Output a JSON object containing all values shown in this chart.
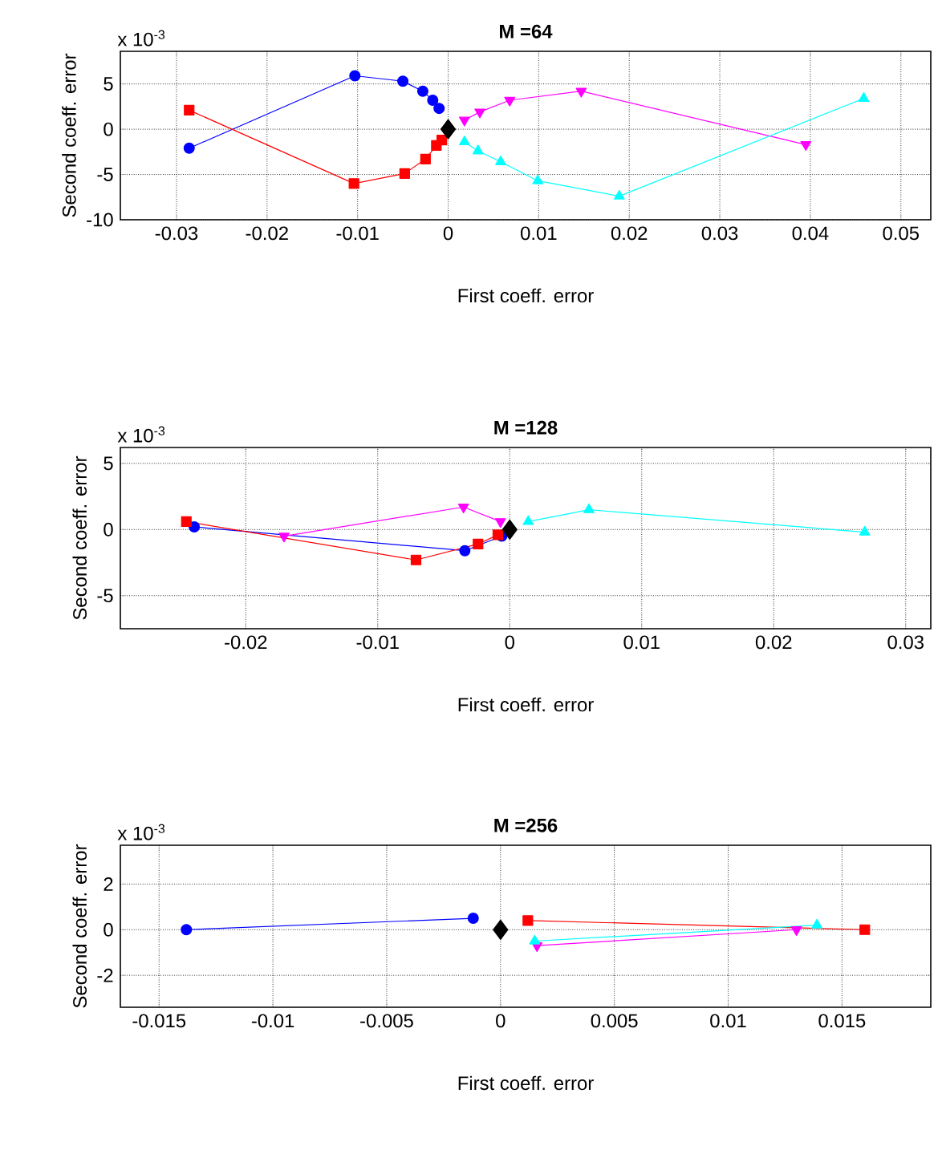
{
  "chart_data": [
    {
      "type": "line",
      "title": "M =64",
      "xlabel": "First coeff. error",
      "ylabel": "Second coeff. error",
      "annotations": [
        "x 10$^{-3}$"
      ],
      "grid": true,
      "xlim": [
        -0.0362,
        0.0533
      ],
      "ylim": [
        -10,
        8.6
      ],
      "xticks": [
        -0.03,
        -0.02,
        -0.01,
        0,
        0.01,
        0.02,
        0.03,
        0.04,
        0.05
      ],
      "yticks": [
        -10,
        -5,
        0,
        5
      ],
      "series": [
        {
          "color": "#0000ff",
          "marker": "circle",
          "x": [
            -0.0286,
            -0.0103,
            -0.005,
            -0.0028,
            -0.0017,
            -0.001
          ],
          "values": [
            -2.1,
            5.9,
            5.3,
            4.2,
            3.2,
            2.3
          ]
        },
        {
          "color": "#ff0000",
          "marker": "square",
          "x": [
            -0.0286,
            -0.0104,
            -0.0048,
            -0.0025,
            -0.0013,
            -0.0007
          ],
          "values": [
            2.1,
            -6.0,
            -4.9,
            -3.3,
            -1.8,
            -1.2
          ]
        },
        {
          "color": "#ff00ff",
          "marker": "triangle-down",
          "x": [
            0.0018,
            0.0035,
            0.0068,
            0.0147,
            0.0395
          ],
          "values": [
            1.0,
            1.9,
            3.2,
            4.2,
            -1.7
          ]
        },
        {
          "color": "#00ffff",
          "marker": "triangle",
          "x": [
            0.0018,
            0.0033,
            0.0058,
            0.0099,
            0.0189,
            0.0459
          ],
          "values": [
            -1.4,
            -2.4,
            -3.6,
            -5.7,
            -7.4,
            3.4
          ]
        },
        {
          "type": "scatter",
          "color": "#000000",
          "marker": "diamond",
          "x": [
            0
          ],
          "values": [
            0
          ]
        }
      ]
    },
    {
      "type": "line",
      "title": "M =128",
      "xlabel": "First coeff. error",
      "ylabel": "Second coeff. error",
      "annotations": [
        "x 10$^{-3}$"
      ],
      "grid": true,
      "xlim": [
        -0.0295,
        0.0319
      ],
      "ylim": [
        -7.5,
        6.2
      ],
      "xticks": [
        -0.02,
        -0.01,
        0,
        0.01,
        0.02,
        0.03
      ],
      "yticks": [
        -5,
        0,
        5
      ],
      "series": [
        {
          "color": "#0000ff",
          "marker": "circle",
          "x": [
            -0.0239,
            -0.0034,
            -0.0006
          ],
          "values": [
            0.2,
            -1.6,
            -0.5
          ]
        },
        {
          "color": "#ff0000",
          "marker": "square",
          "x": [
            -0.0245,
            -0.0071,
            -0.0024,
            -0.0009
          ],
          "values": [
            0.6,
            -2.3,
            -1.1,
            -0.4
          ]
        },
        {
          "color": "#ff00ff",
          "marker": "triangle-down",
          "x": [
            -0.0171,
            -0.0035,
            -0.0007
          ],
          "values": [
            -0.5,
            1.7,
            0.6
          ]
        },
        {
          "color": "#00ffff",
          "marker": "triangle",
          "x": [
            0.0014,
            0.006,
            0.0269
          ],
          "values": [
            0.6,
            1.5,
            -0.2
          ]
        },
        {
          "type": "scatter",
          "color": "#000000",
          "marker": "diamond",
          "x": [
            0
          ],
          "values": [
            0
          ]
        }
      ]
    },
    {
      "type": "line",
      "title": "M =256",
      "xlabel": "First coeff. error",
      "ylabel": "Second coeff. error",
      "annotations": [
        "x 10$^{-3}$"
      ],
      "grid": true,
      "xlim": [
        -0.0167,
        0.0189
      ],
      "ylim": [
        -3.4,
        3.7
      ],
      "xticks": [
        -0.015,
        -0.01,
        -0.005,
        0,
        0.005,
        0.01,
        0.015
      ],
      "yticks": [
        -2,
        0,
        2
      ],
      "series": [
        {
          "color": "#0000ff",
          "marker": "circle",
          "x": [
            -0.0138,
            -0.0012
          ],
          "values": [
            0,
            0.5
          ]
        },
        {
          "color": "#ff0000",
          "marker": "square",
          "x": [
            0.0012,
            0.016
          ],
          "values": [
            0.4,
            0
          ]
        },
        {
          "color": "#ff00ff",
          "marker": "triangle-down",
          "x": [
            0.0016,
            0.013
          ],
          "values": [
            -0.7,
            0
          ]
        },
        {
          "color": "#00ffff",
          "marker": "triangle",
          "x": [
            0.0015,
            0.0139
          ],
          "values": [
            -0.5,
            0.2
          ]
        },
        {
          "type": "scatter",
          "color": "#000000",
          "marker": "diamond",
          "x": [
            0
          ],
          "values": [
            0
          ]
        }
      ]
    }
  ]
}
